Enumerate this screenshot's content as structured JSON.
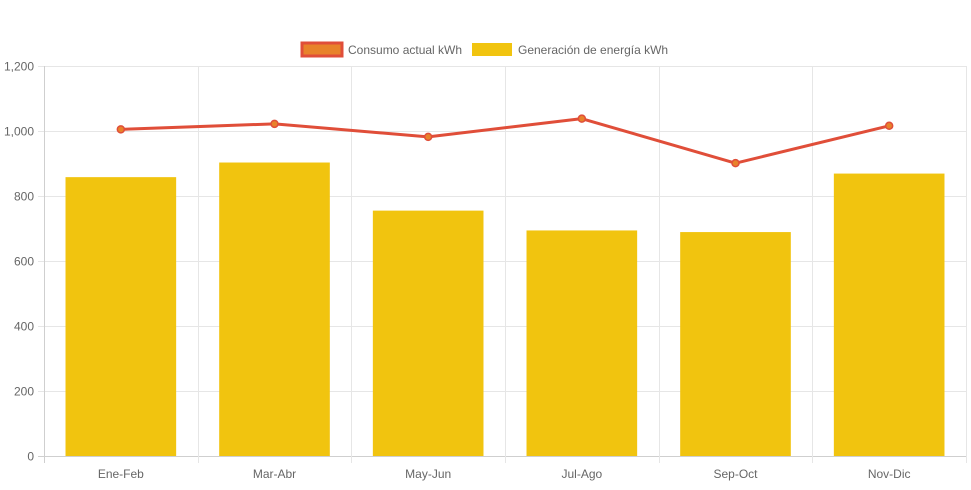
{
  "chart_data": {
    "type": "bar",
    "categories": [
      "Ene-Feb",
      "Mar-Abr",
      "May-Jun",
      "Jul-Ago",
      "Sep-Oct",
      "Nov-Dic"
    ],
    "series": [
      {
        "name": "Consumo actual kWh",
        "type": "line",
        "values": [
          1005,
          1022,
          982,
          1038,
          901,
          1016
        ],
        "color": "#e04e39",
        "marker_fill": "#e8822a"
      },
      {
        "name": "Generación de energía kWh",
        "type": "bar",
        "values": [
          858,
          903,
          755,
          694,
          689,
          869
        ],
        "color": "#f1c40f"
      }
    ],
    "y_ticks": [
      "0",
      "200",
      "400",
      "600",
      "800",
      "1,000",
      "1,200"
    ],
    "ylim": [
      0,
      1200
    ],
    "grid": true,
    "legend_position": "top-center",
    "title": "",
    "xlabel": "",
    "ylabel": ""
  }
}
